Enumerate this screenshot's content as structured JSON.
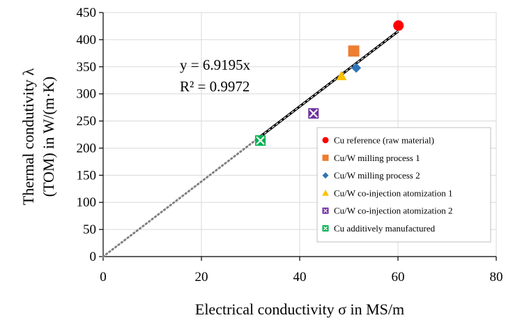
{
  "chart_data": {
    "type": "scatter",
    "xlabel": "Electrical conductivity σ in MS/m",
    "ylabel_lines": [
      "Thermal condutivity λ",
      "(TOM) in W/(m·K)"
    ],
    "xlim": [
      0,
      80
    ],
    "ylim": [
      0,
      450
    ],
    "xticks": [
      0,
      20,
      40,
      60,
      80
    ],
    "yticks": [
      0,
      50,
      100,
      150,
      200,
      250,
      300,
      350,
      400,
      450
    ],
    "grid": true,
    "legend_position": "bottom-right",
    "series": [
      {
        "name": "Cu reference (raw material)",
        "marker": "circle",
        "color": "#ff0000",
        "points": [
          [
            60.1,
            426
          ]
        ]
      },
      {
        "name": "Cu/W milling process 1",
        "marker": "square",
        "color": "#ed7d31",
        "points": [
          [
            51.0,
            379
          ]
        ]
      },
      {
        "name": "Cu/W milling process 2",
        "marker": "diamond",
        "color": "#2e75b6",
        "points": [
          [
            51.5,
            348
          ]
        ]
      },
      {
        "name": "Cu/W co-injection atomization 1",
        "marker": "triangle",
        "color": "#ffc000",
        "points": [
          [
            48.5,
            333
          ]
        ]
      },
      {
        "name": "Cu/W co-injection atomization 2",
        "marker": "crossbox",
        "color": "#7030a0",
        "points": [
          [
            42.8,
            264
          ]
        ]
      },
      {
        "name": "Cu additively manufactured",
        "marker": "crossbox",
        "color": "#00b050",
        "points": [
          [
            32.0,
            214
          ]
        ]
      }
    ],
    "trendline": {
      "slope": 6.9195,
      "solid_range": [
        32.0,
        60.1
      ],
      "dotted_range": [
        0,
        32.0
      ],
      "equation": "y = 6.9195x",
      "r2": "R² = 0.9972"
    }
  }
}
